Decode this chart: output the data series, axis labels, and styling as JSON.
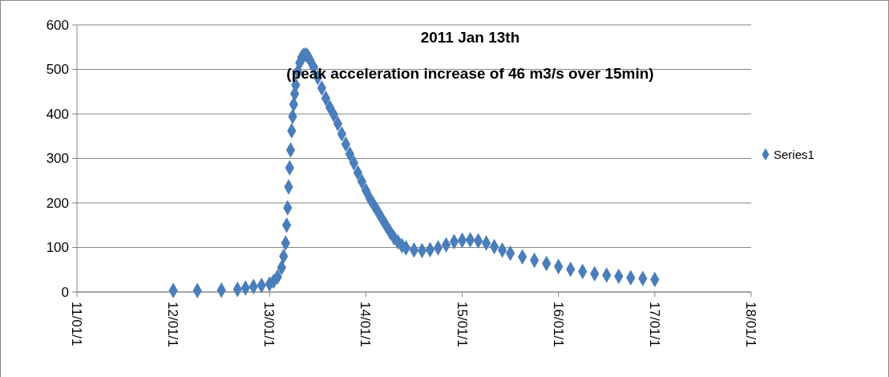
{
  "chart_data": {
    "type": "scatter",
    "title": "2011 Jan 13th",
    "subtitle": "(peak acceleration increase of 46 m3/s over 15min)",
    "x": [
      "2011-01-12T00:00",
      "2011-01-12T06:00",
      "2011-01-12T12:00",
      "2011-01-12T16:00",
      "2011-01-12T18:00",
      "2011-01-12T20:00",
      "2011-01-12T22:00",
      "2011-01-13T00:00",
      "2011-01-13T01:00",
      "2011-01-13T02:00",
      "2011-01-13T03:00",
      "2011-01-13T03:30",
      "2011-01-13T04:00",
      "2011-01-13T04:15",
      "2011-01-13T04:30",
      "2011-01-13T04:45",
      "2011-01-13T05:00",
      "2011-01-13T05:15",
      "2011-01-13T05:30",
      "2011-01-13T05:45",
      "2011-01-13T06:00",
      "2011-01-13T06:15",
      "2011-01-13T06:30",
      "2011-01-13T07:00",
      "2011-01-13T07:30",
      "2011-01-13T08:00",
      "2011-01-13T08:30",
      "2011-01-13T09:00",
      "2011-01-13T09:30",
      "2011-01-13T10:00",
      "2011-01-13T11:00",
      "2011-01-13T12:00",
      "2011-01-13T13:00",
      "2011-01-13T14:00",
      "2011-01-13T15:00",
      "2011-01-13T16:00",
      "2011-01-13T17:00",
      "2011-01-13T18:00",
      "2011-01-13T19:00",
      "2011-01-13T20:00",
      "2011-01-13T21:00",
      "2011-01-13T22:00",
      "2011-01-13T23:00",
      "2011-01-14T00:00",
      "2011-01-14T01:00",
      "2011-01-14T02:00",
      "2011-01-14T03:00",
      "2011-01-14T04:00",
      "2011-01-14T05:00",
      "2011-01-14T06:00",
      "2011-01-14T07:00",
      "2011-01-14T08:00",
      "2011-01-14T09:00",
      "2011-01-14T10:00",
      "2011-01-14T12:00",
      "2011-01-14T14:00",
      "2011-01-14T16:00",
      "2011-01-14T18:00",
      "2011-01-14T20:00",
      "2011-01-14T22:00",
      "2011-01-15T00:00",
      "2011-01-15T02:00",
      "2011-01-15T04:00",
      "2011-01-15T06:00",
      "2011-01-15T08:00",
      "2011-01-15T10:00",
      "2011-01-15T12:00",
      "2011-01-15T15:00",
      "2011-01-15T18:00",
      "2011-01-15T21:00",
      "2011-01-16T00:00",
      "2011-01-16T03:00",
      "2011-01-16T06:00",
      "2011-01-16T09:00",
      "2011-01-16T12:00",
      "2011-01-16T15:00",
      "2011-01-16T18:00",
      "2011-01-16T21:00",
      "2011-01-17T00:00"
    ],
    "series": [
      {
        "name": "Series1",
        "color": "#4a7ebb",
        "values": [
          3,
          3,
          4,
          6,
          9,
          12,
          15,
          18,
          24,
          34,
          55,
          80,
          110,
          150,
          189,
          236,
          279,
          319,
          362,
          394,
          421,
          445,
          465,
          495,
          515,
          527,
          532,
          533,
          530,
          522,
          505,
          482,
          458,
          435,
          415,
          398,
          378,
          355,
          332,
          310,
          290,
          268,
          248,
          228,
          210,
          195,
          180,
          165,
          150,
          135,
          122,
          112,
          104,
          99,
          94,
          93,
          95,
          99,
          106,
          113,
          116,
          117,
          115,
          110,
          102,
          94,
          87,
          79,
          71,
          64,
          57,
          51,
          46,
          41,
          38,
          35,
          32,
          30,
          28
        ]
      }
    ],
    "xlim": [
      "2011-01-11",
      "2011-01-18"
    ],
    "xticks": [
      {
        "value": "2011-01-11",
        "label": "11/01/1"
      },
      {
        "value": "2011-01-12",
        "label": "12/01/1"
      },
      {
        "value": "2011-01-13",
        "label": "13/01/1"
      },
      {
        "value": "2011-01-14",
        "label": "14/01/1"
      },
      {
        "value": "2011-01-15",
        "label": "15/01/1"
      },
      {
        "value": "2011-01-16",
        "label": "16/01/1"
      },
      {
        "value": "2011-01-17",
        "label": "17/01/1"
      },
      {
        "value": "2011-01-18",
        "label": "18/01/1"
      }
    ],
    "ylim": [
      0,
      600
    ],
    "yticks": [
      0,
      100,
      200,
      300,
      400,
      500,
      600
    ],
    "grid": "y",
    "legend": "right",
    "marker": "diamond"
  }
}
